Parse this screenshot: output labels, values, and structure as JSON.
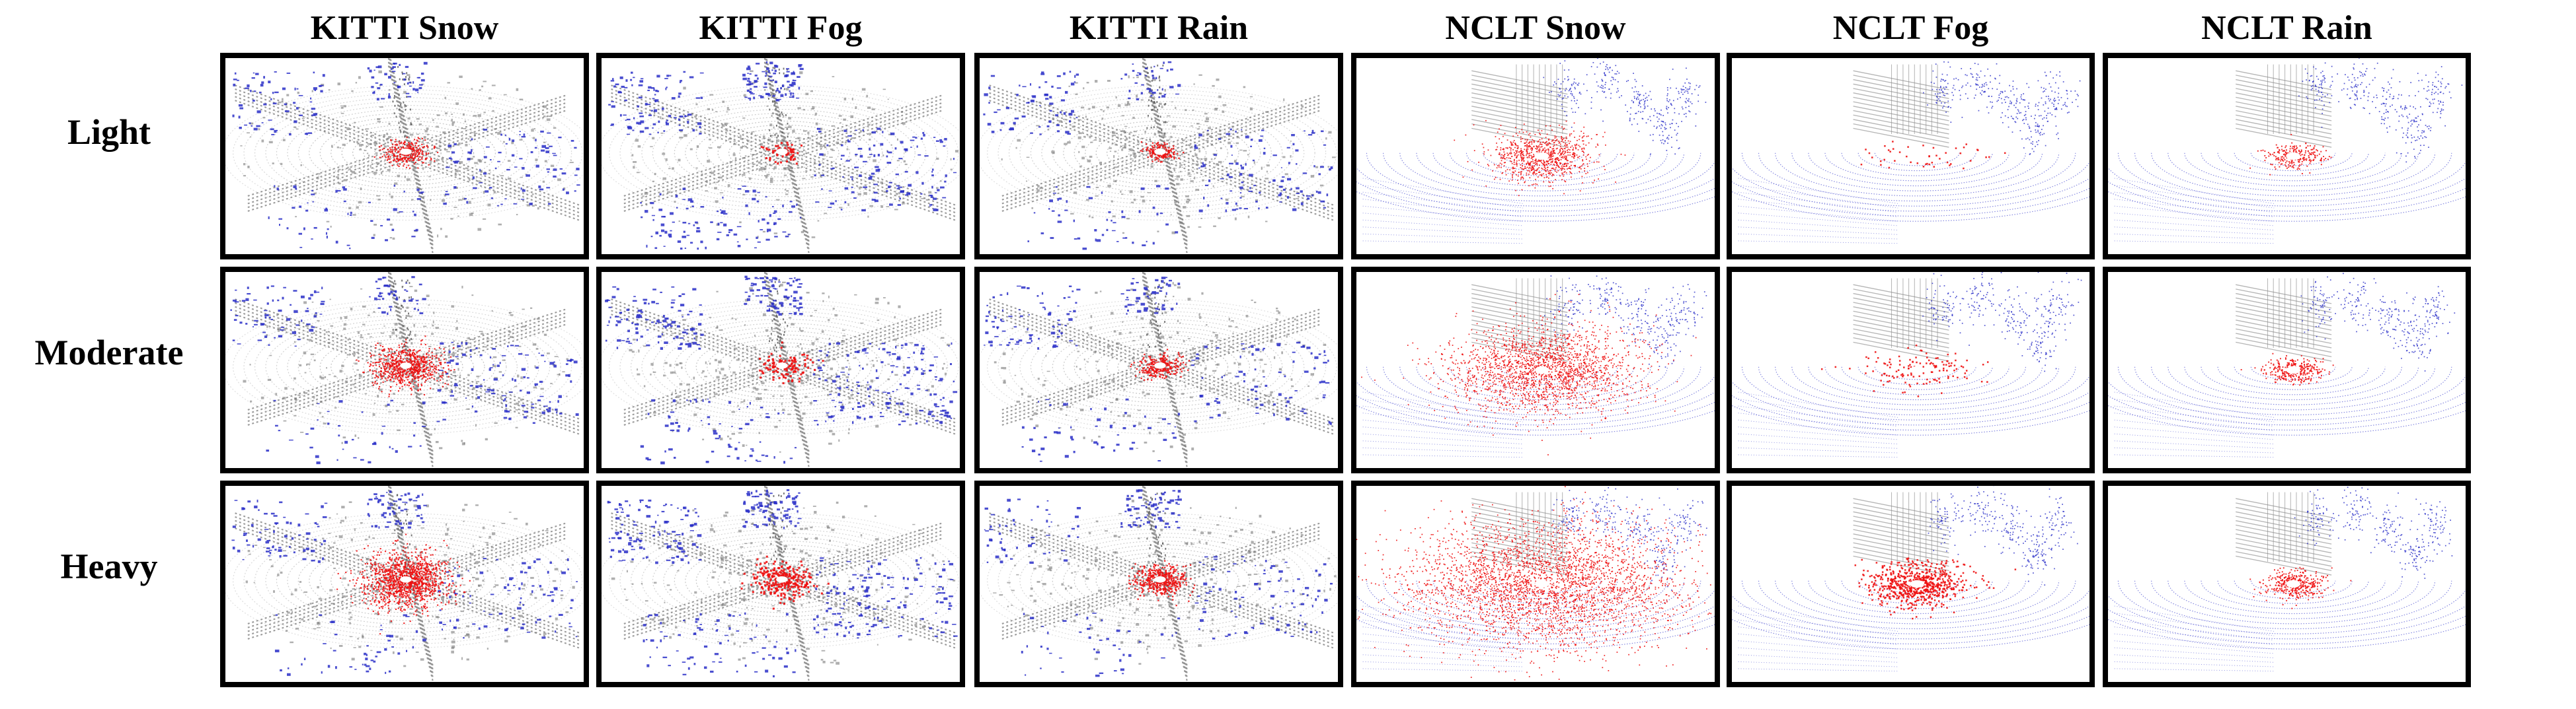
{
  "figure": {
    "columns": [
      {
        "label": "KITTI Snow",
        "dataset": "kitti",
        "weather": "snow"
      },
      {
        "label": "KITTI Fog",
        "dataset": "kitti",
        "weather": "fog"
      },
      {
        "label": "KITTI Rain",
        "dataset": "kitti",
        "weather": "rain"
      },
      {
        "label": "NCLT Snow",
        "dataset": "nclt",
        "weather": "snow"
      },
      {
        "label": "NCLT Fog",
        "dataset": "nclt",
        "weather": "fog"
      },
      {
        "label": "NCLT Rain",
        "dataset": "nclt",
        "weather": "rain"
      }
    ],
    "rows": [
      {
        "label": "Light",
        "level": 1
      },
      {
        "label": "Moderate",
        "level": 2
      },
      {
        "label": "Heavy",
        "level": 3
      }
    ],
    "colors": {
      "border": "#000000",
      "structure_gray": "#7a7a7a",
      "scan_blue": "#2a2fc8",
      "noise_red": "#ee1111",
      "center_white": "#ffffff"
    }
  }
}
